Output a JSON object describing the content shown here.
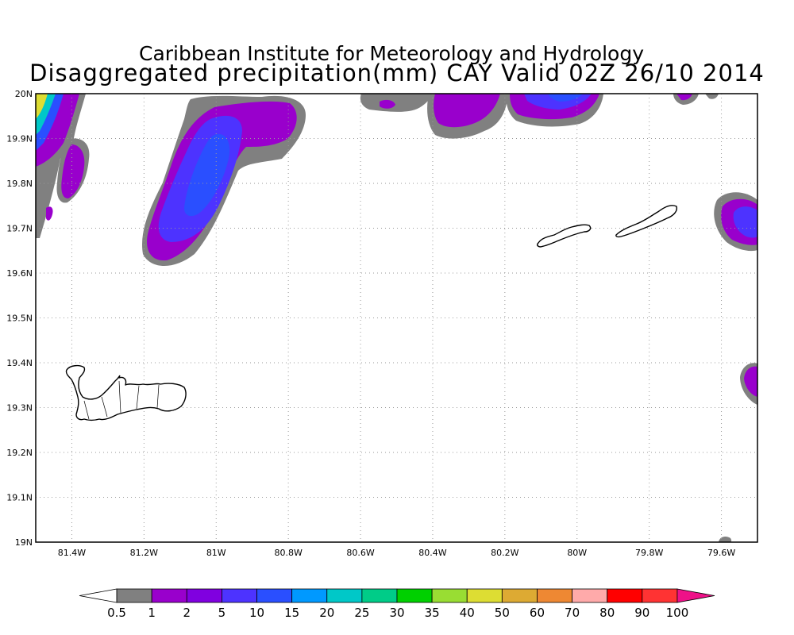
{
  "title_line1": "Caribbean Institute for Meteorology and Hydrology",
  "title_line2": "Disaggregated precipitation(mm) CAY Valid 02Z 26/10 2014",
  "map": {
    "lon_range": [
      -81.5,
      -79.5
    ],
    "lat_range": [
      19.0,
      20.0
    ],
    "x_ticks": [
      {
        "value": -81.4,
        "label": "81.4W"
      },
      {
        "value": -81.2,
        "label": "81.2W"
      },
      {
        "value": -81.0,
        "label": "81W"
      },
      {
        "value": -80.8,
        "label": "80.8W"
      },
      {
        "value": -80.6,
        "label": "80.6W"
      },
      {
        "value": -80.4,
        "label": "80.4W"
      },
      {
        "value": -80.2,
        "label": "80.2W"
      },
      {
        "value": -80.0,
        "label": "80W"
      },
      {
        "value": -79.8,
        "label": "79.8W"
      },
      {
        "value": -79.6,
        "label": "79.6W"
      }
    ],
    "y_ticks": [
      {
        "value": 20.0,
        "label": "20N"
      },
      {
        "value": 19.9,
        "label": "19.9N"
      },
      {
        "value": 19.8,
        "label": "19.8N"
      },
      {
        "value": 19.7,
        "label": "19.7N"
      },
      {
        "value": 19.6,
        "label": "19.6N"
      },
      {
        "value": 19.5,
        "label": "19.5N"
      },
      {
        "value": 19.4,
        "label": "19.4N"
      },
      {
        "value": 19.3,
        "label": "19.3N"
      },
      {
        "value": 19.2,
        "label": "19.2N"
      },
      {
        "value": 19.1,
        "label": "19.1N"
      },
      {
        "value": 19.0,
        "label": "19N"
      }
    ]
  },
  "colorbar": {
    "colors": [
      "#ffffff",
      "#808080",
      "#9900cc",
      "#8000e0",
      "#4d33ff",
      "#2a4fff",
      "#0099ff",
      "#00c8c8",
      "#00cc88",
      "#00d000",
      "#99dd33",
      "#dddd33",
      "#ddaa33",
      "#ee8833",
      "#ffaaaa",
      "#ff0000",
      "#ff3333",
      "#ee1188"
    ],
    "labels": [
      "0.5",
      "1",
      "2",
      "5",
      "10",
      "15",
      "20",
      "25",
      "30",
      "35",
      "40",
      "50",
      "60",
      "70",
      "80",
      "90",
      "100"
    ]
  }
}
